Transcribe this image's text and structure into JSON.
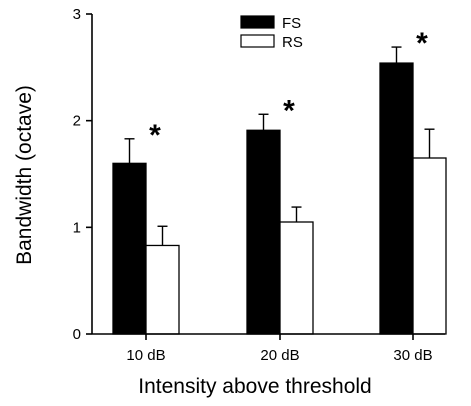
{
  "chart_data": {
    "type": "bar",
    "categories": [
      "10 dB",
      "20 dB",
      "30 dB"
    ],
    "series": [
      {
        "name": "FS",
        "color": "#000000",
        "values": [
          1.6,
          1.91,
          2.54
        ],
        "errors": [
          0.23,
          0.15,
          0.15
        ]
      },
      {
        "name": "RS",
        "color": "#ffffff",
        "values": [
          0.83,
          1.05,
          1.65
        ],
        "errors": [
          0.18,
          0.14,
          0.27
        ]
      }
    ],
    "xlabel": "Intensity above threshold",
    "ylabel": "Bandwidth (octave)",
    "ylim": [
      0,
      3
    ],
    "yticks": [
      0,
      1,
      2,
      3
    ],
    "grid": false,
    "legend": "top-center",
    "annotations": [
      "*",
      "*",
      "*"
    ]
  }
}
